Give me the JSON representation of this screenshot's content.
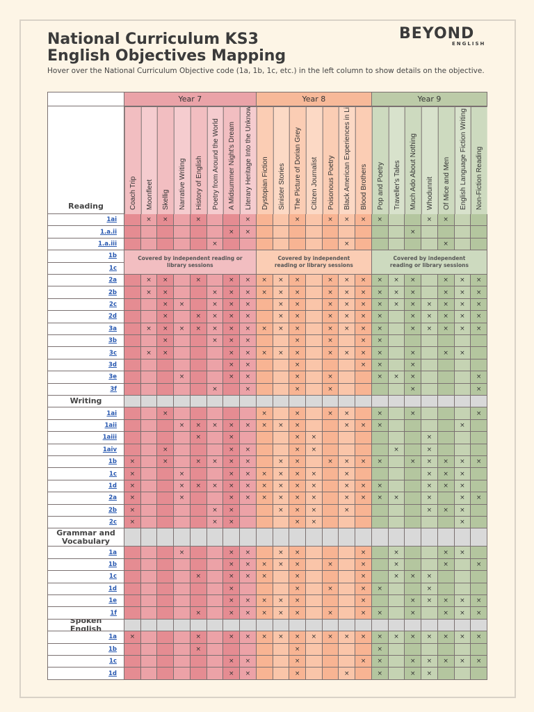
{
  "header": {
    "title_line1": "National Curriculum KS3",
    "title_line2": "English Objectives Mapping",
    "logo_main": "BEYOND",
    "logo_sub": "ENGLISH",
    "instructions": "Hover over the National Curriculum Objective code (1a, 1b, 1c, etc.) in the left column to show details on the objective."
  },
  "table": {
    "mark": "×",
    "years": [
      {
        "name": "Year 7",
        "columns": [
          "Coach Trip",
          "Moonfleet",
          "Skellig",
          "Narrative Writing",
          "History of English",
          "Poetry from Around the World",
          "A Midsummer Night's Dream",
          "Literary Heritage Into the Unknown"
        ]
      },
      {
        "name": "Year 8",
        "columns": [
          "Dystopian Fiction",
          "Sinister Stories",
          "The Picture of Dorian Grey",
          "Citizen Journalist",
          "Poisonous Poetry",
          "Black American Experiences in Literature",
          "Blood Brothers"
        ]
      },
      {
        "name": "Year 9",
        "columns": [
          "Pop and Poetry",
          "Traveller's Tales",
          "Much Ado About Nothing",
          "Whodunnit",
          "Of Mice and Men",
          "English Language Fiction Writing",
          "Non-Fiction Reading"
        ]
      }
    ],
    "coverage_note": "Covered by independent reading or library sessions",
    "sections": [
      {
        "name": "Reading",
        "coverage_rows": [
          3,
          4
        ],
        "rows": [
          {
            "code": "1ai",
            "marks": [
              1,
              2,
              4,
              7,
              10,
              12,
              13,
              14,
              15,
              18,
              19
            ]
          },
          {
            "code": "1.a.ii",
            "marks": [
              6,
              7,
              17
            ]
          },
          {
            "code": "1.a.iii",
            "marks": [
              5,
              13,
              19
            ]
          },
          {
            "code": "1b",
            "marks": []
          },
          {
            "code": "1c",
            "marks": []
          },
          {
            "code": "2a",
            "marks": [
              1,
              2,
              4,
              6,
              7,
              8,
              9,
              10,
              12,
              13,
              14,
              15,
              16,
              17,
              19,
              20,
              21
            ]
          },
          {
            "code": "2b",
            "marks": [
              1,
              2,
              5,
              6,
              7,
              8,
              9,
              10,
              12,
              13,
              14,
              15,
              16,
              17,
              19,
              20,
              21
            ]
          },
          {
            "code": "2c",
            "marks": [
              2,
              3,
              5,
              6,
              7,
              9,
              10,
              12,
              13,
              14,
              15,
              16,
              17,
              18,
              19,
              20,
              21
            ]
          },
          {
            "code": "2d",
            "marks": [
              2,
              4,
              5,
              6,
              7,
              9,
              10,
              12,
              13,
              14,
              15,
              17,
              18,
              19,
              20,
              21
            ]
          },
          {
            "code": "3a",
            "marks": [
              1,
              2,
              3,
              4,
              5,
              6,
              7,
              8,
              9,
              10,
              12,
              13,
              14,
              15,
              17,
              18,
              19,
              20,
              21
            ]
          },
          {
            "code": "3b",
            "marks": [
              2,
              5,
              6,
              7,
              10,
              12,
              14,
              15
            ]
          },
          {
            "code": "3c",
            "marks": [
              1,
              2,
              6,
              7,
              8,
              9,
              10,
              12,
              13,
              14,
              15,
              17,
              19,
              20
            ]
          },
          {
            "code": "3d",
            "marks": [
              6,
              7,
              10,
              14,
              15,
              17
            ]
          },
          {
            "code": "3e",
            "marks": [
              3,
              6,
              7,
              10,
              12,
              15,
              16,
              17,
              21
            ]
          },
          {
            "code": "3f",
            "marks": [
              5,
              7,
              10,
              12,
              17,
              21
            ]
          }
        ]
      },
      {
        "name": "Writing",
        "rows": [
          {
            "code": "1ai",
            "marks": [
              2,
              8,
              10,
              12,
              13,
              15,
              17,
              21
            ]
          },
          {
            "code": "1aii",
            "marks": [
              3,
              4,
              5,
              6,
              7,
              8,
              9,
              10,
              13,
              14,
              15,
              20
            ]
          },
          {
            "code": "1aiii",
            "marks": [
              4,
              6,
              10,
              11,
              18
            ]
          },
          {
            "code": "1aiv",
            "marks": [
              2,
              6,
              7,
              10,
              11,
              16,
              18
            ]
          },
          {
            "code": "1b",
            "marks": [
              0,
              2,
              4,
              5,
              6,
              7,
              9,
              10,
              12,
              13,
              14,
              15,
              17,
              18,
              19,
              20,
              21
            ]
          },
          {
            "code": "1c",
            "marks": [
              0,
              3,
              6,
              7,
              8,
              9,
              10,
              11,
              13,
              18,
              19,
              20
            ]
          },
          {
            "code": "1d",
            "marks": [
              0,
              3,
              4,
              5,
              6,
              7,
              8,
              9,
              10,
              11,
              13,
              14,
              15,
              18,
              19,
              20
            ]
          },
          {
            "code": "2a",
            "marks": [
              0,
              3,
              6,
              7,
              8,
              9,
              10,
              11,
              13,
              14,
              15,
              16,
              18,
              20,
              21
            ]
          },
          {
            "code": "2b",
            "marks": [
              0,
              5,
              6,
              9,
              10,
              11,
              13,
              18,
              19,
              20
            ]
          },
          {
            "code": "2c",
            "marks": [
              0,
              5,
              6,
              10,
              11,
              20
            ]
          }
        ]
      },
      {
        "name": "Grammar and Vocabulary",
        "rows": [
          {
            "code": "1a",
            "marks": [
              3,
              6,
              7,
              9,
              10,
              14,
              16,
              19,
              20
            ]
          },
          {
            "code": "1b",
            "marks": [
              6,
              7,
              8,
              9,
              10,
              12,
              14,
              16,
              19,
              21
            ]
          },
          {
            "code": "1c",
            "marks": [
              4,
              6,
              7,
              8,
              10,
              14,
              16,
              17,
              18
            ]
          },
          {
            "code": "1d",
            "marks": [
              6,
              10,
              12,
              14,
              15,
              18
            ]
          },
          {
            "code": "1e",
            "marks": [
              6,
              7,
              8,
              9,
              10,
              14,
              17,
              18,
              19,
              20,
              21
            ]
          },
          {
            "code": "1f",
            "marks": [
              4,
              6,
              7,
              8,
              9,
              10,
              12,
              14,
              15,
              17,
              19,
              20,
              21
            ]
          }
        ]
      },
      {
        "name": "Spoken English",
        "rows": [
          {
            "code": "1a",
            "marks": [
              0,
              4,
              6,
              7,
              8,
              9,
              10,
              11,
              12,
              13,
              14,
              15,
              16,
              17,
              18,
              19,
              20,
              21
            ]
          },
          {
            "code": "1b",
            "marks": [
              4,
              10,
              15
            ]
          },
          {
            "code": "1c",
            "marks": [
              6,
              7,
              10,
              14,
              15,
              17,
              18,
              19,
              20,
              21
            ]
          },
          {
            "code": "1d",
            "marks": [
              6,
              7,
              10,
              13,
              15,
              17,
              18
            ]
          }
        ]
      }
    ]
  }
}
